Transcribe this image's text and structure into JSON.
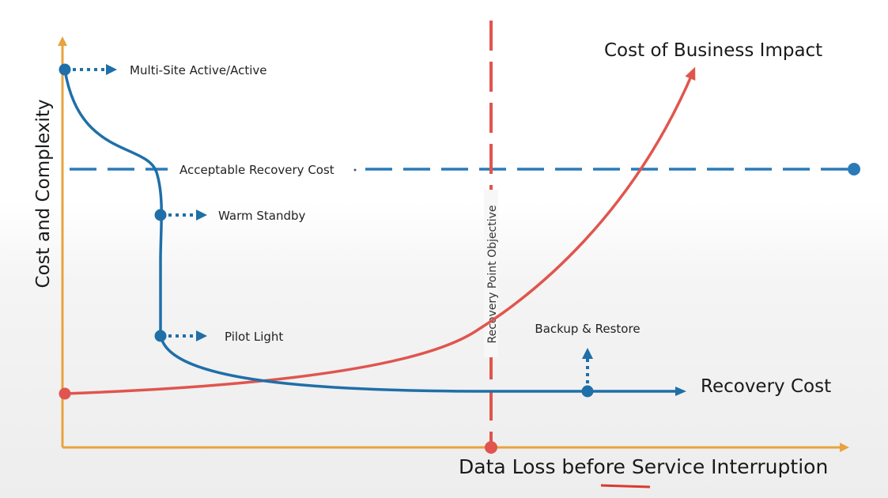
{
  "diagram": {
    "y_axis_label": "Cost and Complexity",
    "x_axis_label": "Data Loss before Service Interruption",
    "cost_of_business_impact_label": "Cost of Business Impact",
    "recovery_cost_label": "Recovery Cost",
    "acceptable_recovery_cost_label": "Acceptable Recovery Cost",
    "recovery_point_objective_label": "Recovery Point Objective",
    "strategies": [
      {
        "label": "Multi-Site Active/Active"
      },
      {
        "label": "Warm Standby"
      },
      {
        "label": "Pilot Light"
      },
      {
        "label": "Backup & Restore"
      }
    ]
  },
  "colors": {
    "axis": "#e8a33d",
    "recovery_curve": "#1f6fa8",
    "business_curve": "#e0554e",
    "acceptable_line": "#2a7ab8",
    "rpo_line": "#e0554e"
  }
}
